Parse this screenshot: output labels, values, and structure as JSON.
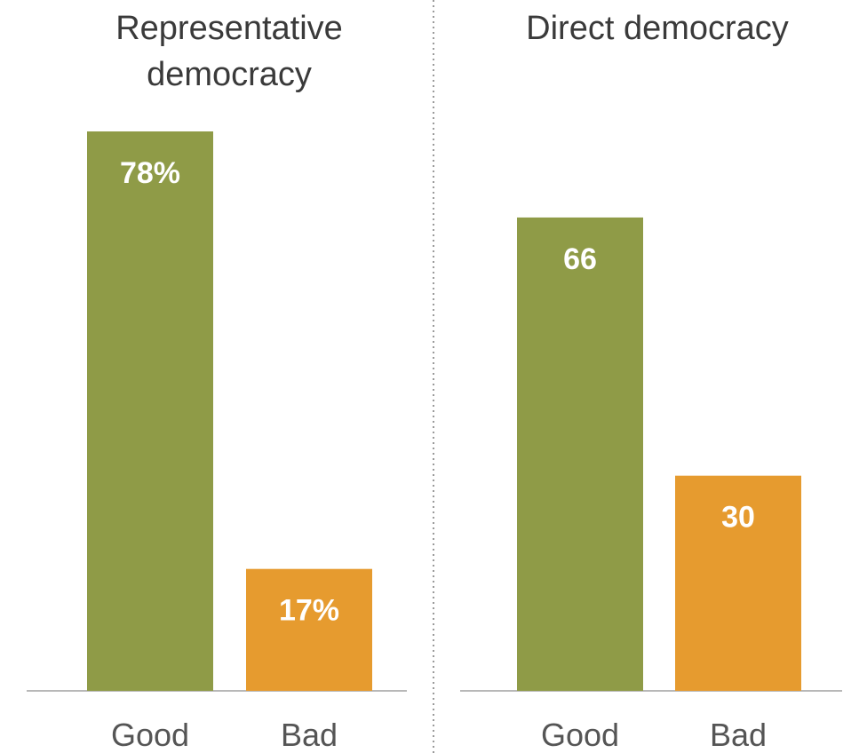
{
  "chart_data": [
    {
      "type": "bar",
      "title": "Representative democracy",
      "categories": [
        "Good",
        "Bad"
      ],
      "values": [
        78,
        17
      ],
      "value_labels": [
        "78%",
        "17%"
      ],
      "colors": [
        "#8f9b47",
        "#e69b2f"
      ],
      "ylim": [
        0,
        100
      ],
      "grid": false
    },
    {
      "type": "bar",
      "title": "Direct democracy",
      "categories": [
        "Good",
        "Bad"
      ],
      "values": [
        66,
        30
      ],
      "value_labels": [
        "66",
        "30"
      ],
      "colors": [
        "#8f9b47",
        "#e69b2f"
      ],
      "ylim": [
        0,
        100
      ],
      "grid": false
    }
  ]
}
